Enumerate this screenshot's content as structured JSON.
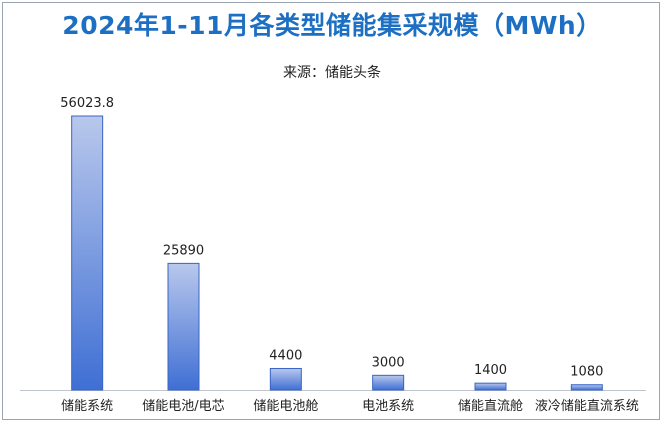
{
  "title": "2024年1-11月各类型储能集采规模（MWh）",
  "subtitle": "来源：储能头条",
  "colors": {
    "title": "#1c6fc2",
    "bar_top": "#b9c8ec",
    "bar_bottom": "#3f6fd4",
    "bar_edge": "#3a64c4",
    "axis": "#bfc5cc"
  },
  "chart_data": {
    "type": "bar",
    "title": "2024年1-11月各类型储能集采规模（MWh）",
    "subtitle": "来源：储能头条",
    "xlabel": "",
    "ylabel": "",
    "categories": [
      "储能系统",
      "储能电池/电芯",
      "储能电池舱",
      "电池系统",
      "储能直流舱",
      "液冷储能直流系统"
    ],
    "values": [
      56023.8,
      25890,
      4400,
      3000,
      1400,
      1080
    ],
    "value_labels": [
      "56023.8",
      "25890",
      "4400",
      "3000",
      "1400",
      "1080"
    ],
    "ylim": [
      0,
      56023.8
    ],
    "grid": false,
    "legend": "none"
  }
}
